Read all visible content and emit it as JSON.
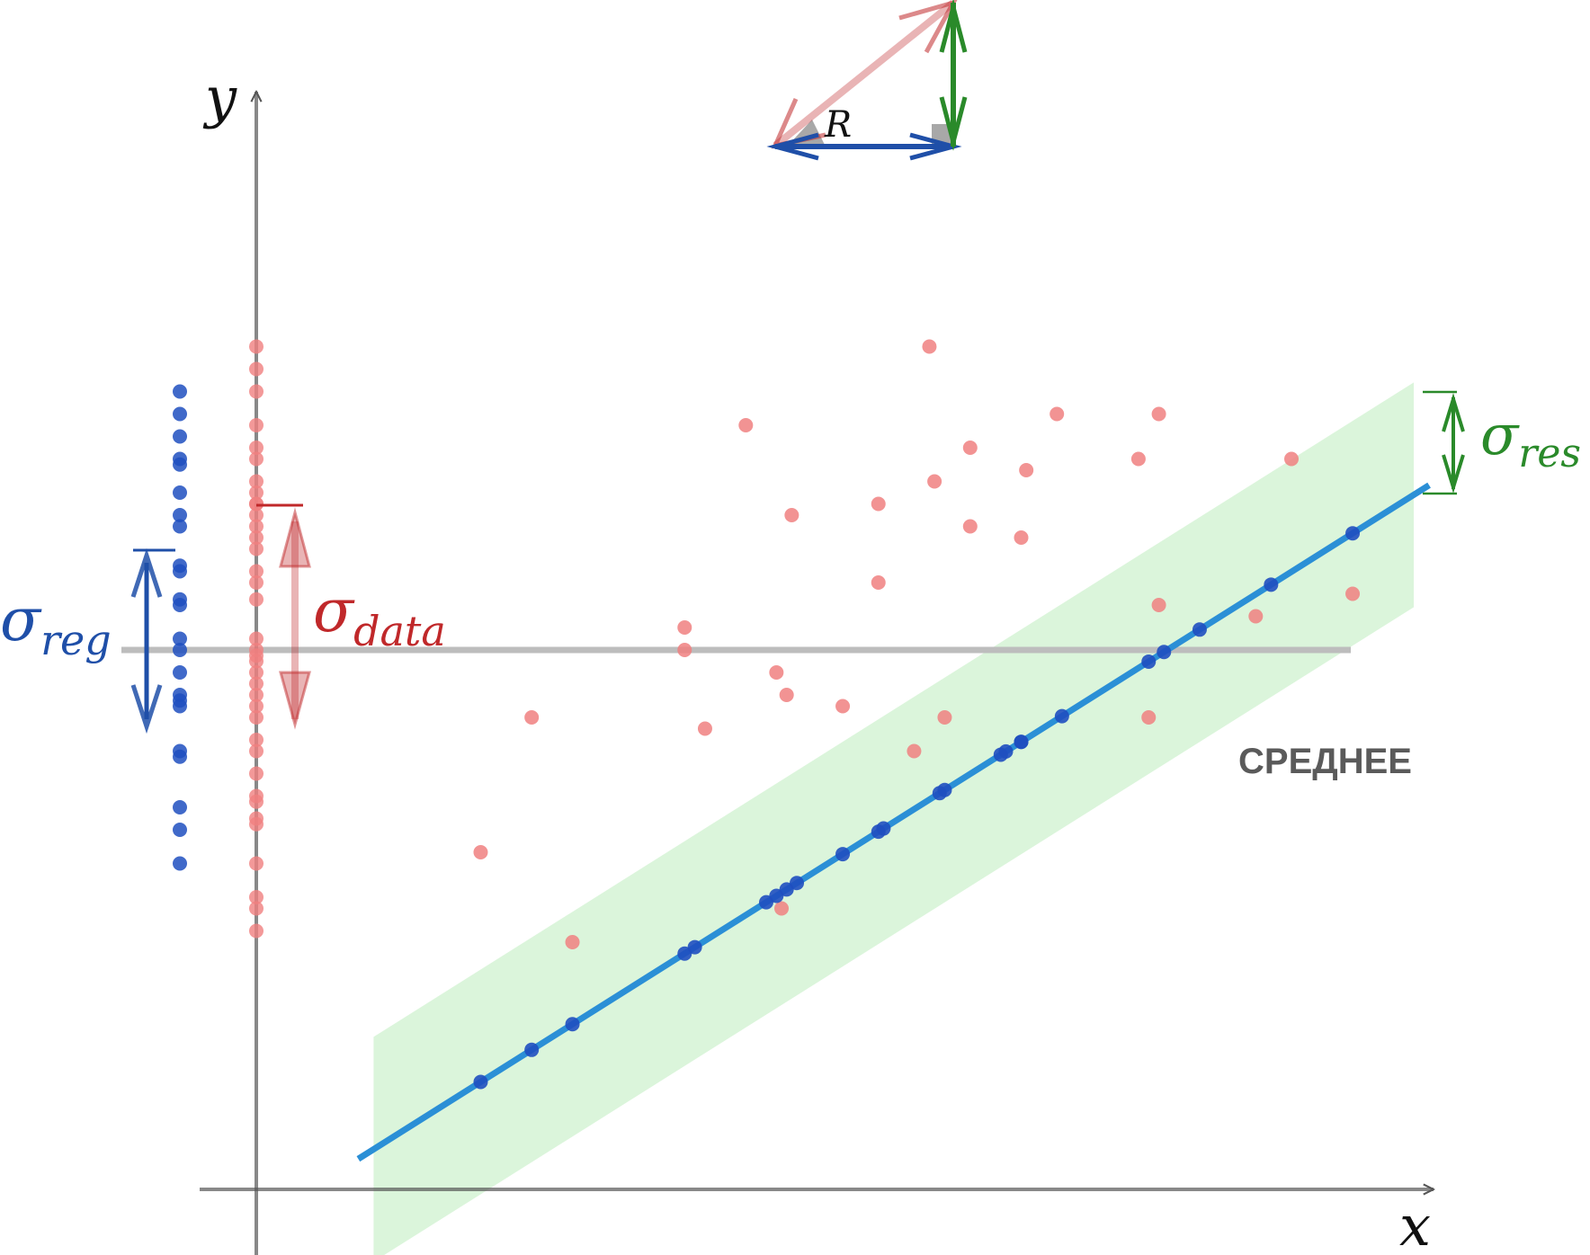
{
  "labels": {
    "x_axis": "x",
    "y_axis": "y",
    "mean": "СРЕДНЕЕ",
    "triangle_r": "R",
    "sigma_symbol": "σ",
    "sigma_reg_sub": "reg",
    "sigma_data_sub": "data",
    "sigma_res_sub": "res"
  },
  "colors": {
    "axis": "#555555",
    "mean_line": "#bdbdbd",
    "mean_text": "#5a5a5a",
    "regression_line": "#2b8fd6",
    "band_fill": "#c8f0c8",
    "data_point": "#f08080",
    "fitted_point": "#1f4fc0",
    "sigma_reg": "#1f4fa8",
    "sigma_data": "#c0282a",
    "sigma_res": "#2a8a2a",
    "right_angle": "#a8a8a8"
  },
  "chart_data": {
    "type": "scatter",
    "regression": {
      "slope": 0.571,
      "intercept": -0.3
    },
    "mean_y": 4.8,
    "band_half_width": 1.0,
    "x_range": [
      1.0,
      11.5
    ],
    "data_points": [
      [
        2.2,
        3.0
      ],
      [
        2.7,
        4.2
      ],
      [
        3.1,
        2.2
      ],
      [
        4.2,
        4.8
      ],
      [
        4.2,
        5.0
      ],
      [
        4.4,
        4.1
      ],
      [
        4.8,
        6.8
      ],
      [
        5.1,
        4.6
      ],
      [
        5.15,
        2.5
      ],
      [
        5.2,
        4.4
      ],
      [
        5.25,
        6.0
      ],
      [
        5.75,
        4.3
      ],
      [
        6.1,
        6.1
      ],
      [
        6.1,
        5.4
      ],
      [
        6.45,
        3.9
      ],
      [
        6.6,
        7.5
      ],
      [
        6.65,
        6.3
      ],
      [
        6.75,
        4.2
      ],
      [
        7.0,
        5.9
      ],
      [
        7.0,
        6.6
      ],
      [
        7.5,
        5.8
      ],
      [
        7.55,
        6.4
      ],
      [
        7.85,
        6.9
      ],
      [
        8.65,
        6.5
      ],
      [
        8.75,
        4.2
      ],
      [
        8.85,
        6.9
      ],
      [
        8.85,
        5.2
      ],
      [
        9.8,
        5.1
      ],
      [
        10.15,
        6.5
      ],
      [
        10.75,
        5.3
      ]
    ],
    "fitted_x": [
      2.2,
      2.7,
      3.1,
      4.2,
      4.3,
      5.0,
      5.1,
      5.2,
      5.3,
      5.75,
      6.1,
      6.15,
      6.7,
      6.75,
      7.3,
      7.35,
      7.5,
      7.5,
      7.9,
      8.75,
      8.9,
      9.25,
      9.95,
      10.75
    ],
    "projected_data_y": [
      7.5,
      7.3,
      7.1,
      6.8,
      6.6,
      6.5,
      6.3,
      6.2,
      6.1,
      6.1,
      6.0,
      5.9,
      5.8,
      5.7,
      5.5,
      5.4,
      5.25,
      4.9,
      4.8,
      4.75,
      4.7,
      4.6,
      4.5,
      4.4,
      4.3,
      4.2,
      4.0,
      3.9,
      3.7,
      3.5,
      3.45,
      3.3,
      3.25,
      2.9,
      2.6,
      2.5,
      2.3
    ],
    "projected_fitted_y": [
      7.1,
      6.9,
      6.7,
      6.5,
      6.45,
      6.2,
      6.0,
      5.9,
      5.55,
      5.5,
      5.25,
      5.2,
      4.9,
      4.8,
      4.6,
      4.4,
      4.35,
      4.3,
      3.9,
      3.85,
      3.4,
      3.2,
      2.9
    ]
  }
}
